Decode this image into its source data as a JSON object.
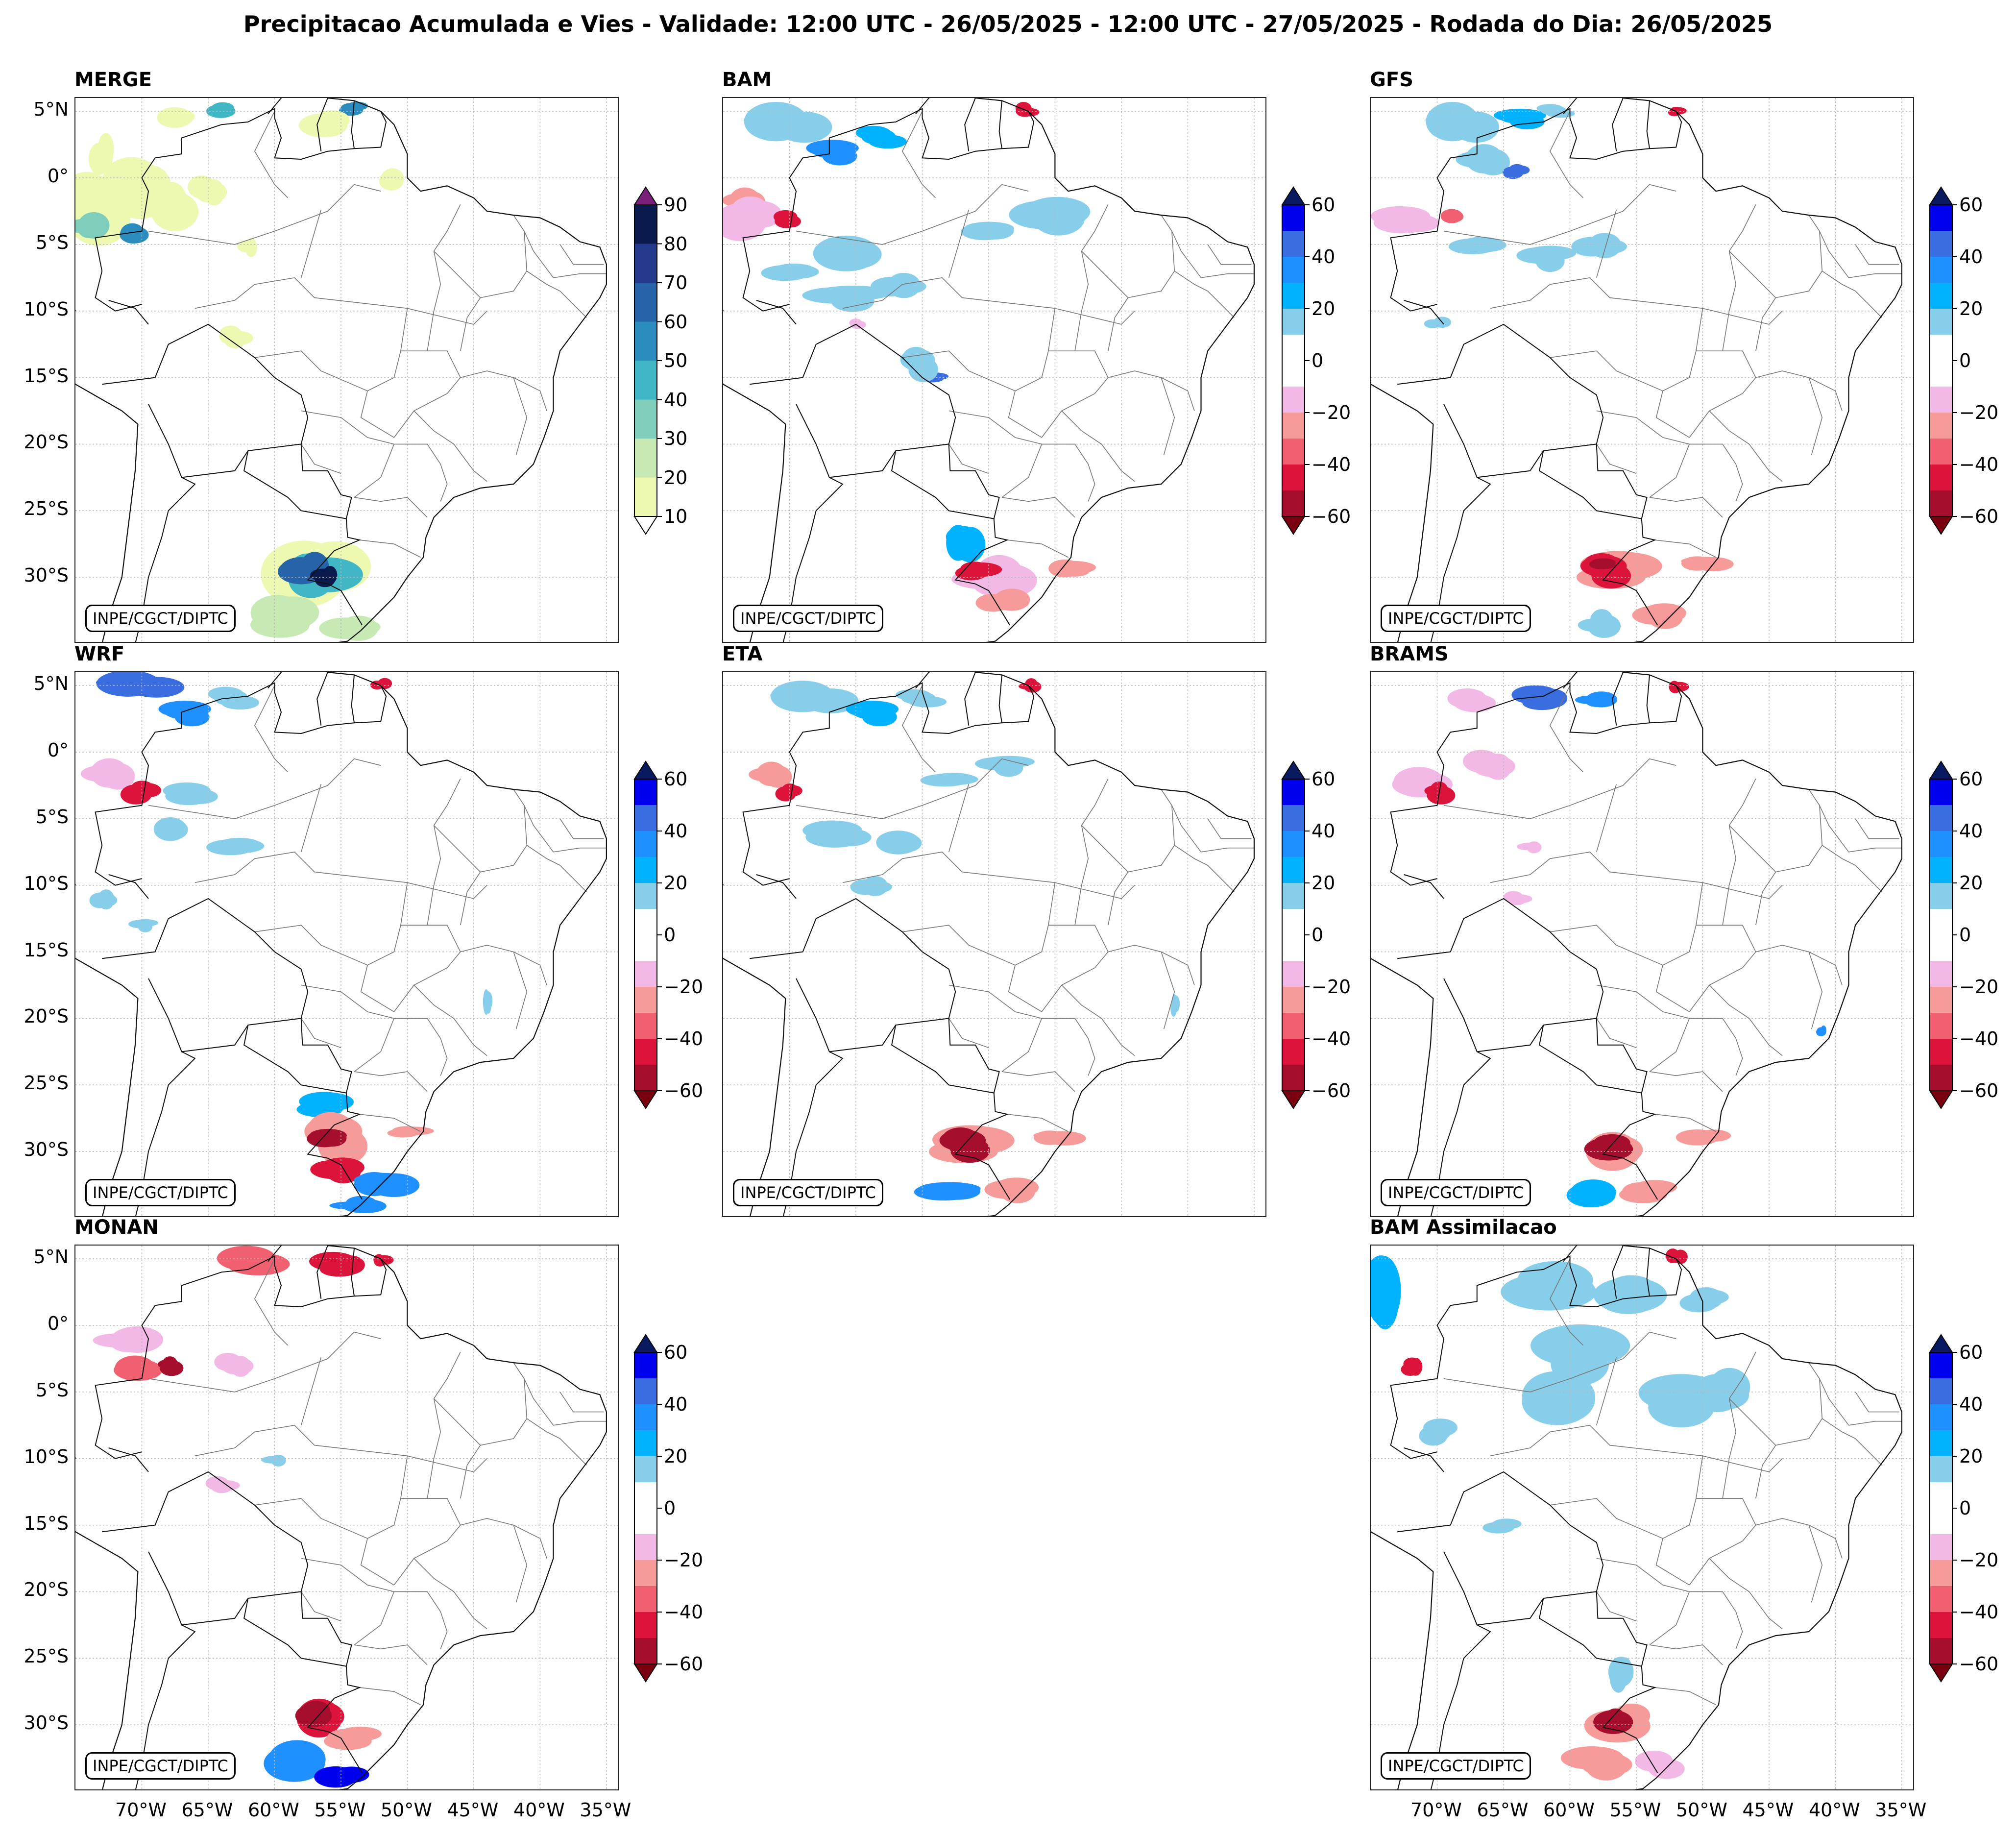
{
  "title": "Precipitacao Acumulada e Vies - Validade: 12:00 UTC - 26/05/2025 - 12:00 UTC - 27/05/2025 - Rodada do Dia: 26/05/2025",
  "credit": "INPE/CGCT/DIPTC",
  "lat_labels": [
    "5°N",
    "0°",
    "5°S",
    "10°S",
    "15°S",
    "20°S",
    "25°S",
    "30°S"
  ],
  "lon_labels": [
    "70°W",
    "65°W",
    "60°W",
    "55°W",
    "50°W",
    "45°W",
    "40°W",
    "35°W"
  ],
  "panels": [
    {
      "name": "MERGE",
      "scale": "precip"
    },
    {
      "name": "BAM",
      "scale": "bias"
    },
    {
      "name": "GFS",
      "scale": "bias"
    },
    {
      "name": "WRF",
      "scale": "bias"
    },
    {
      "name": "ETA",
      "scale": "bias"
    },
    {
      "name": "BRAMS",
      "scale": "bias"
    },
    {
      "name": "MONAN",
      "scale": "bias"
    },
    {
      "name": "BAM Assimilacao",
      "scale": "bias"
    }
  ],
  "precip_scale": {
    "ticks": [
      "90",
      "80",
      "70",
      "60",
      "50",
      "40",
      "30",
      "20",
      "10"
    ],
    "colors": [
      "#0b1a4d",
      "#233a8c",
      "#2763a8",
      "#2b8cbe",
      "#41b6c4",
      "#7fcdbb",
      "#c7e9b4",
      "#edf8b1"
    ],
    "over_color": "#7a1f7a",
    "under_color": "#ffffff"
  },
  "bias_scale": {
    "ticks": [
      "60",
      "40",
      "20",
      "0",
      "−20",
      "−40",
      "−60"
    ],
    "colors": [
      "#0000ee",
      "#3a6de0",
      "#1e90ff",
      "#00b2ff",
      "#87ceeb",
      "#ffffff",
      "#ffffff",
      "#f2b8e6",
      "#f79a9a",
      "#f06070",
      "#dc143c",
      "#a50f2d"
    ],
    "over_color": "#0a1a60",
    "under_color": "#7a0010"
  }
}
